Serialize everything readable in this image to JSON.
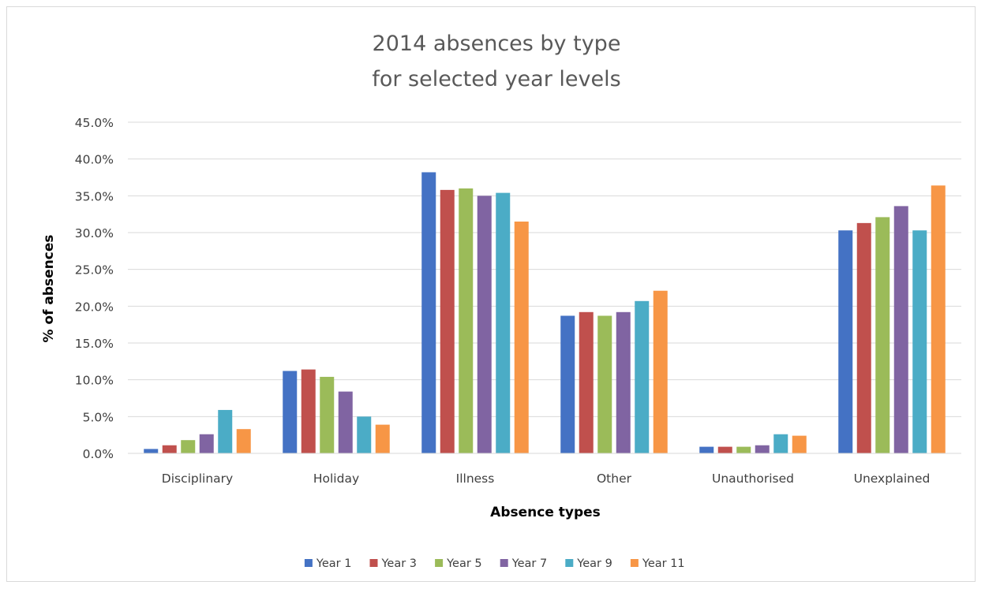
{
  "chart_data": {
    "type": "bar",
    "title": [
      "2014 absences by type",
      "for selected year levels"
    ],
    "xlabel": "Absence types",
    "ylabel": "% of absences",
    "categories": [
      "Disciplinary",
      "Holiday",
      "Illness",
      "Other",
      "Unauthorised",
      "Unexplained"
    ],
    "ylim": [
      0,
      45
    ],
    "yticks": [
      0,
      5,
      10,
      15,
      20,
      25,
      30,
      35,
      40,
      45
    ],
    "ytick_labels": [
      "0.0%",
      "5.0%",
      "10.0%",
      "15.0%",
      "20.0%",
      "25.0%",
      "30.0%",
      "35.0%",
      "40.0%",
      "45.0%"
    ],
    "grid": true,
    "legend_position": "bottom",
    "series": [
      {
        "name": "Year 1",
        "color": "#4472C4",
        "values": [
          0.6,
          11.2,
          38.2,
          18.7,
          0.9,
          30.3
        ]
      },
      {
        "name": "Year 3",
        "color": "#C0504D",
        "values": [
          1.1,
          11.4,
          35.8,
          19.2,
          0.9,
          31.3
        ]
      },
      {
        "name": "Year 5",
        "color": "#9BBB59",
        "values": [
          1.8,
          10.4,
          36.0,
          18.7,
          0.9,
          32.1
        ]
      },
      {
        "name": "Year 7",
        "color": "#8064A2",
        "values": [
          2.6,
          8.4,
          35.0,
          19.2,
          1.1,
          33.6
        ]
      },
      {
        "name": "Year 9",
        "color": "#4BACC6",
        "values": [
          5.9,
          5.0,
          35.4,
          20.7,
          2.6,
          30.3
        ]
      },
      {
        "name": "Year 11",
        "color": "#F79646",
        "values": [
          3.3,
          3.9,
          31.5,
          22.1,
          2.4,
          36.4
        ]
      }
    ]
  }
}
